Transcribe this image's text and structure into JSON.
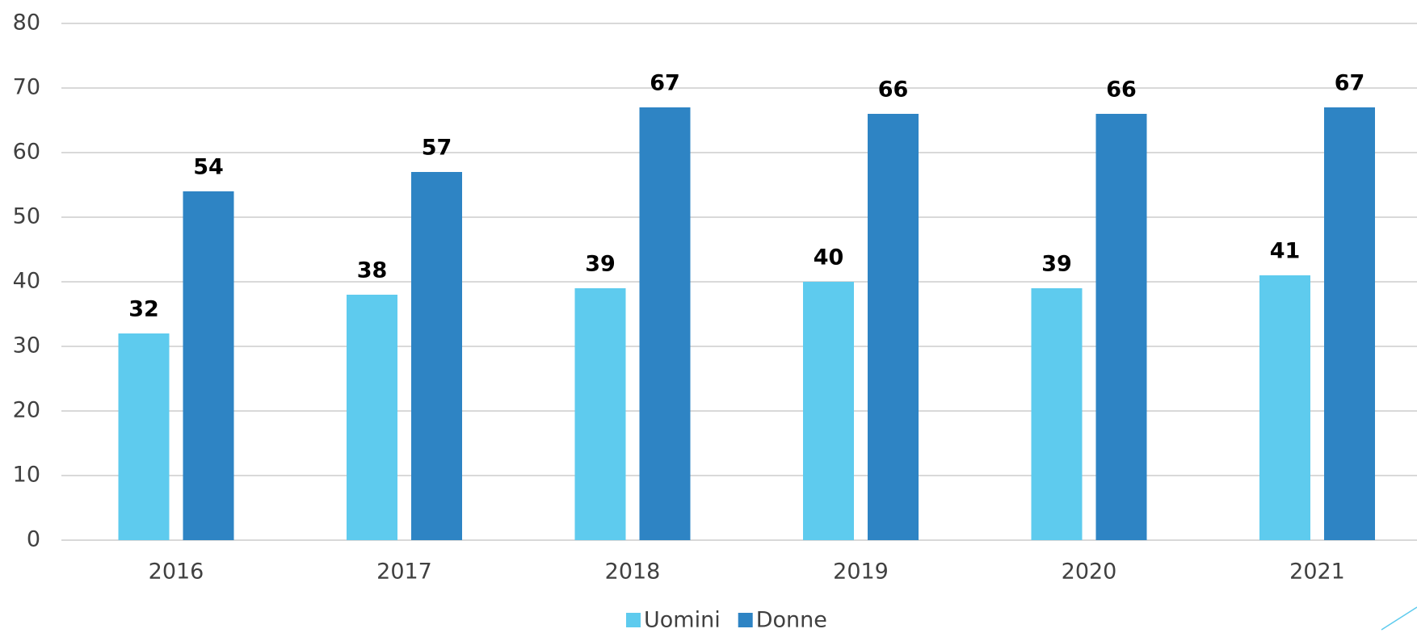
{
  "chart_data": {
    "type": "bar",
    "categories": [
      "2016",
      "2017",
      "2018",
      "2019",
      "2020",
      "2021"
    ],
    "series": [
      {
        "name": "Uomini",
        "color": "#5ecbee",
        "values": [
          32,
          38,
          39,
          40,
          39,
          41
        ]
      },
      {
        "name": "Donne",
        "color": "#2e84c4",
        "values": [
          54,
          57,
          67,
          66,
          66,
          67
        ]
      }
    ],
    "ylim": [
      0,
      80
    ],
    "yticks": [
      0,
      10,
      20,
      30,
      40,
      50,
      60,
      70,
      80
    ],
    "grid": true,
    "legend": "bottom"
  }
}
